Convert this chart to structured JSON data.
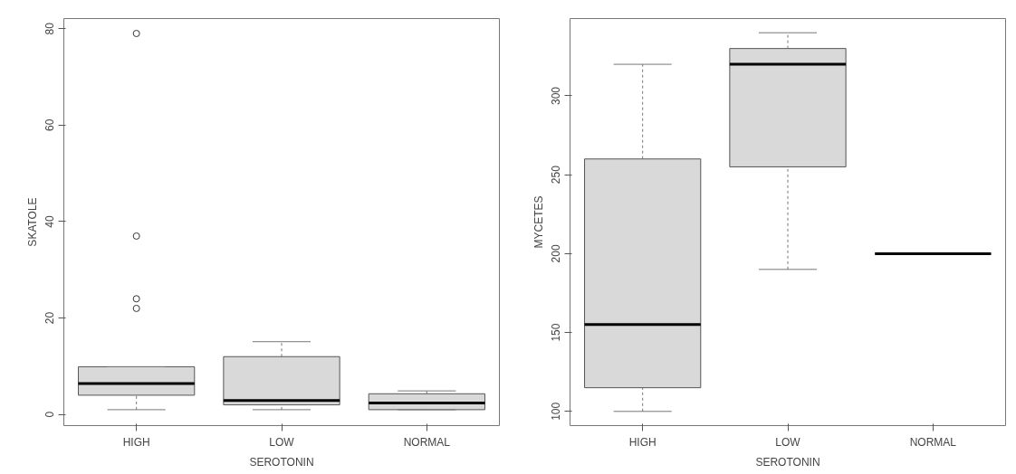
{
  "chart_data": [
    {
      "type": "box",
      "xlabel": "SEROTONIN",
      "ylabel": "SKATOLE",
      "categories": [
        "HIGH",
        "LOW",
        "NORMAL"
      ],
      "color": "#d9d9d9",
      "ylim": [
        -2.3,
        82.1
      ],
      "yticks": [
        0,
        20,
        40,
        60,
        80
      ],
      "grid": false,
      "boxes": [
        {
          "low": 1,
          "q1": 4,
          "median": 6.4,
          "q3": 9.9,
          "high": 9.9,
          "outliers": [
            79,
            37,
            24,
            22
          ]
        },
        {
          "low": 1,
          "q1": 2,
          "median": 2.9,
          "q3": 12,
          "high": 15.1
        },
        {
          "low": 1,
          "q1": 1,
          "median": 2.4,
          "q3": 4.3,
          "high": 4.9
        }
      ]
    },
    {
      "type": "box",
      "xlabel": "SEROTONIN",
      "ylabel": "MYCETES",
      "categories": [
        "HIGH",
        "LOW",
        "NORMAL"
      ],
      "color": "#d9d9d9",
      "ylim": [
        91,
        349
      ],
      "yticks": [
        100,
        150,
        200,
        250,
        300
      ],
      "grid": false,
      "boxes": [
        {
          "low": 100,
          "q1": 115,
          "median": 155,
          "q3": 260,
          "high": 320
        },
        {
          "low": 190,
          "q1": 255,
          "median": 320,
          "q3": 330,
          "high": 340
        },
        {
          "low": 200,
          "q1": 200,
          "median": 200,
          "q3": 200,
          "high": 200
        }
      ]
    }
  ]
}
